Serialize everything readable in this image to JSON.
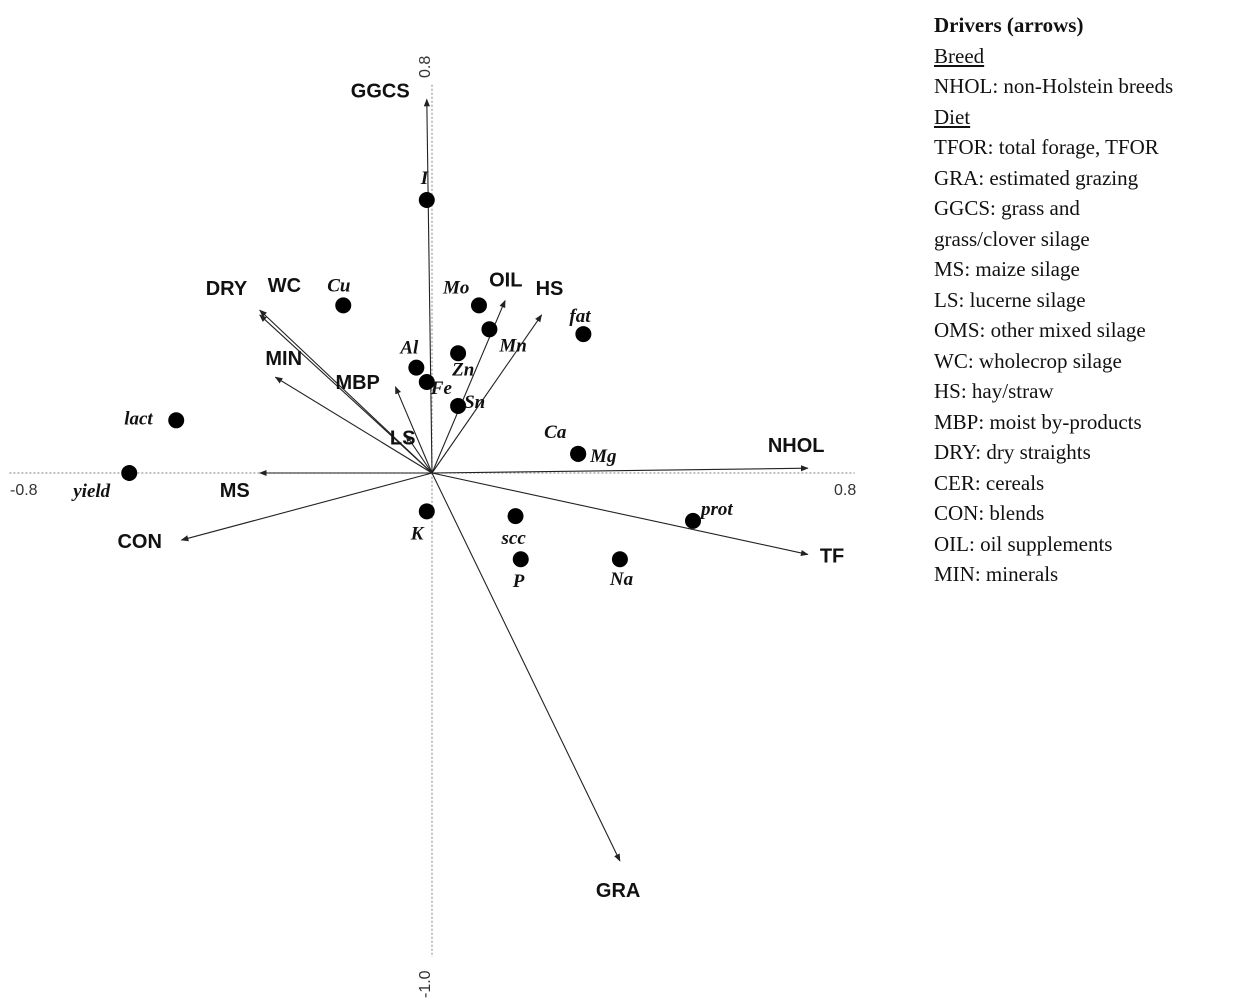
{
  "chart_data": {
    "type": "scatter",
    "subtype": "ordination biplot (arrows = drivers, points = response variables)",
    "axes": {
      "x": {
        "range": [
          -0.8,
          0.8
        ],
        "tick_labels": [
          "-0.8",
          "0.8"
        ]
      },
      "y": {
        "range": [
          -1.0,
          0.8
        ],
        "tick_labels": [
          "0.8",
          "-1.0"
        ]
      },
      "grid": false
    },
    "arrows": [
      {
        "label": "GGCS",
        "x": -0.01,
        "y": 0.78
      },
      {
        "label": "DRY",
        "x": -0.33,
        "y": 0.33
      },
      {
        "label": "WC",
        "x": -0.33,
        "y": 0.34
      },
      {
        "label": "MIN",
        "x": -0.3,
        "y": 0.2
      },
      {
        "label": "MBP",
        "x": -0.07,
        "y": 0.18
      },
      {
        "label": "LS",
        "x": -0.05,
        "y": 0.08
      },
      {
        "label": "OIL",
        "x": 0.14,
        "y": 0.36
      },
      {
        "label": "HS",
        "x": 0.21,
        "y": 0.33
      },
      {
        "label": "NHOL",
        "x": 0.72,
        "y": 0.01
      },
      {
        "label": "TF",
        "x": 0.72,
        "y": -0.17
      },
      {
        "label": "GRA",
        "x": 0.36,
        "y": -0.81
      },
      {
        "label": "MS",
        "x": -0.33,
        "y": 0.0
      },
      {
        "label": "CON",
        "x": -0.48,
        "y": -0.14
      }
    ],
    "points": [
      {
        "label": "I",
        "x": -0.01,
        "y": 0.57
      },
      {
        "label": "Cu",
        "x": -0.17,
        "y": 0.35
      },
      {
        "label": "Mo",
        "x": 0.09,
        "y": 0.35
      },
      {
        "label": "Mn",
        "x": 0.11,
        "y": 0.3
      },
      {
        "label": "fat",
        "x": 0.29,
        "y": 0.29
      },
      {
        "label": "Al",
        "x": -0.03,
        "y": 0.22
      },
      {
        "label": "Zn",
        "x": 0.05,
        "y": 0.25
      },
      {
        "label": "Fe",
        "x": -0.01,
        "y": 0.19
      },
      {
        "label": "Sn",
        "x": 0.05,
        "y": 0.14
      },
      {
        "label": "lact",
        "x": -0.49,
        "y": 0.11
      },
      {
        "label": "Ca",
        "x": 0.28,
        "y": 0.04
      },
      {
        "label": "Mg",
        "x": 0.28,
        "y": 0.04
      },
      {
        "label": "yield",
        "x": -0.58,
        "y": 0.0
      },
      {
        "label": "K",
        "x": -0.01,
        "y": -0.08
      },
      {
        "label": "scc",
        "x": 0.16,
        "y": -0.09
      },
      {
        "label": "prot",
        "x": 0.5,
        "y": -0.1
      },
      {
        "label": "P",
        "x": 0.17,
        "y": -0.18
      },
      {
        "label": "Na",
        "x": 0.36,
        "y": -0.18
      }
    ]
  },
  "legend": {
    "title": "Drivers (arrows)",
    "groups": [
      {
        "name": "Breed",
        "items": [
          "NHOL: non-Holstein breeds"
        ]
      },
      {
        "name": "Diet",
        "items": [
          "TFOR: total forage, TFOR",
          "GRA: estimated grazing",
          "GGCS: grass and",
          "grass/clover silage",
          "MS: maize silage",
          "LS: lucerne silage",
          "OMS: other mixed silage",
          "WC: wholecrop silage",
          "HS: hay/straw",
          "MBP: moist by-products",
          "DRY: dry straights",
          "CER: cereals",
          "CON: blends",
          "OIL: oil supplements",
          "MIN: minerals"
        ]
      }
    ]
  }
}
